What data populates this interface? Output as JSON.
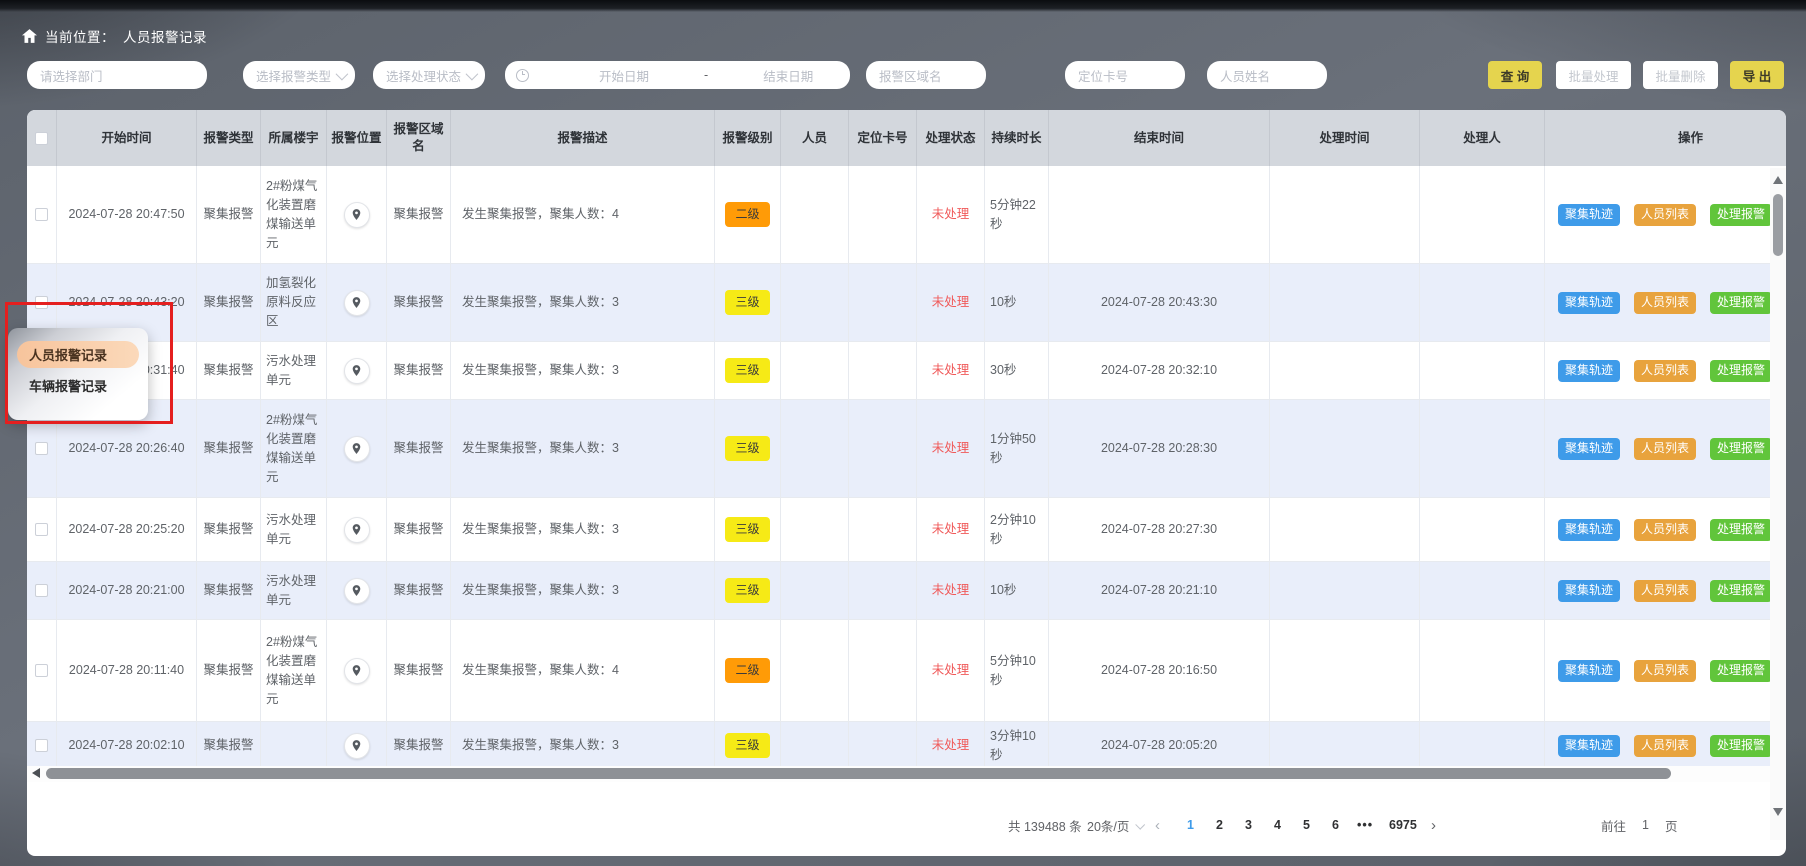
{
  "breadcrumb": {
    "label": "当前位置：",
    "current": "人员报警记录"
  },
  "filters": {
    "department_placeholder": "请选择部门",
    "alarm_type_placeholder": "选择报警类型",
    "handle_status_placeholder": "选择处理状态",
    "start_date_placeholder": "开始日期",
    "date_separator": "-",
    "end_date_placeholder": "结束日期",
    "region_placeholder": "报警区域名",
    "card_placeholder": "定位卡号",
    "person_placeholder": "人员姓名"
  },
  "toolbar": {
    "query": "查 询",
    "batch_handle": "批量处理",
    "batch_delete": "批量删除",
    "export": "导 出",
    "accent_color": "#e5d44e"
  },
  "popup_menu": {
    "items": [
      {
        "label": "人员报警记录",
        "active": true
      },
      {
        "label": "车辆报警记录",
        "active": false
      }
    ],
    "highlight_color": "#f8cda6",
    "annotation_color": "#e41f1f"
  },
  "table": {
    "headers": {
      "start": "开始时间",
      "type": "报警类型",
      "building": "所属楼宇",
      "position": "报警位置",
      "region": "报警区域名",
      "desc": "报警描述",
      "level": "报警级别",
      "person": "人员",
      "card": "定位卡号",
      "status": "处理状态",
      "duration": "持续时长",
      "end": "结束时间",
      "handle_time": "处理时间",
      "handler": "处理人",
      "action": "操作"
    },
    "action_buttons": [
      {
        "label": "聚集轨迹",
        "bg": "#3e9be9"
      },
      {
        "label": "人员列表",
        "bg": "#e8a33d"
      },
      {
        "label": "处理报警",
        "bg": "#61c53b"
      }
    ],
    "clipped_button_bg": "#ece277",
    "rows": [
      {
        "start": "2024-07-28 20:47:50",
        "type": "聚集报警",
        "building": "2#粉煤气化装置磨煤输送单元",
        "region": "聚集报警",
        "desc": "发生聚集报警，聚集人数：4",
        "level": "二级",
        "level_bg": "#ff9b07",
        "person": "",
        "card": "",
        "status": "未处理",
        "duration": "5分钟22秒",
        "end": "",
        "handle_time": "",
        "handler": ""
      },
      {
        "start": "2024-07-28 20:43:20",
        "type": "聚集报警",
        "building": "加氢裂化原料反应区",
        "region": "聚集报警",
        "desc": "发生聚集报警，聚集人数：3",
        "level": "三级",
        "level_bg": "#f6ea16",
        "person": "",
        "card": "",
        "status": "未处理",
        "duration": "10秒",
        "end": "2024-07-28 20:43:30",
        "handle_time": "",
        "handler": ""
      },
      {
        "start": "2024-07-28 20:31:40",
        "type": "聚集报警",
        "building": "污水处理单元",
        "region": "聚集报警",
        "desc": "发生聚集报警，聚集人数：3",
        "level": "三级",
        "level_bg": "#f6ea16",
        "person": "",
        "card": "",
        "status": "未处理",
        "duration": "30秒",
        "end": "2024-07-28 20:32:10",
        "handle_time": "",
        "handler": ""
      },
      {
        "start": "2024-07-28 20:26:40",
        "type": "聚集报警",
        "building": "2#粉煤气化装置磨煤输送单元",
        "region": "聚集报警",
        "desc": "发生聚集报警，聚集人数：3",
        "level": "三级",
        "level_bg": "#f6ea16",
        "person": "",
        "card": "",
        "status": "未处理",
        "duration": "1分钟50秒",
        "end": "2024-07-28 20:28:30",
        "handle_time": "",
        "handler": ""
      },
      {
        "start": "2024-07-28 20:25:20",
        "type": "聚集报警",
        "building": "污水处理单元",
        "region": "聚集报警",
        "desc": "发生聚集报警，聚集人数：3",
        "level": "三级",
        "level_bg": "#f6ea16",
        "person": "",
        "card": "",
        "status": "未处理",
        "duration": "2分钟10秒",
        "end": "2024-07-28 20:27:30",
        "handle_time": "",
        "handler": ""
      },
      {
        "start": "2024-07-28 20:21:00",
        "type": "聚集报警",
        "building": "污水处理单元",
        "region": "聚集报警",
        "desc": "发生聚集报警，聚集人数：3",
        "level": "三级",
        "level_bg": "#f6ea16",
        "person": "",
        "card": "",
        "status": "未处理",
        "duration": "10秒",
        "end": "2024-07-28 20:21:10",
        "handle_time": "",
        "handler": ""
      },
      {
        "start": "2024-07-28 20:11:40",
        "type": "聚集报警",
        "building": "2#粉煤气化装置磨煤输送单元",
        "region": "聚集报警",
        "desc": "发生聚集报警，聚集人数：4",
        "level": "二级",
        "level_bg": "#ff9b07",
        "person": "",
        "card": "",
        "status": "未处理",
        "duration": "5分钟10秒",
        "end": "2024-07-28 20:16:50",
        "handle_time": "",
        "handler": ""
      },
      {
        "start": "2024-07-28 20:02:10",
        "type": "聚集报警",
        "building": "",
        "region": "聚集报警",
        "desc": "发生聚集报警，聚集人数：3",
        "level": "三级",
        "level_bg": "#f6ea16",
        "person": "",
        "card": "",
        "status": "未处理",
        "duration": "3分钟10秒",
        "end": "2024-07-28 20:05:20",
        "handle_time": "",
        "handler": ""
      }
    ],
    "status_color": "#f05a5a",
    "stripe_color": "#e9eefa"
  },
  "pagination": {
    "total": "共 139488 条",
    "page_size": "20条/页",
    "prev": "‹",
    "pages": [
      "1",
      "2",
      "3",
      "4",
      "5",
      "6"
    ],
    "ellipsis": "•••",
    "last_page": "6975",
    "next": "›",
    "goto_label": "前往",
    "goto_value": "1",
    "goto_unit": "页",
    "active_color": "#3e9be9"
  }
}
